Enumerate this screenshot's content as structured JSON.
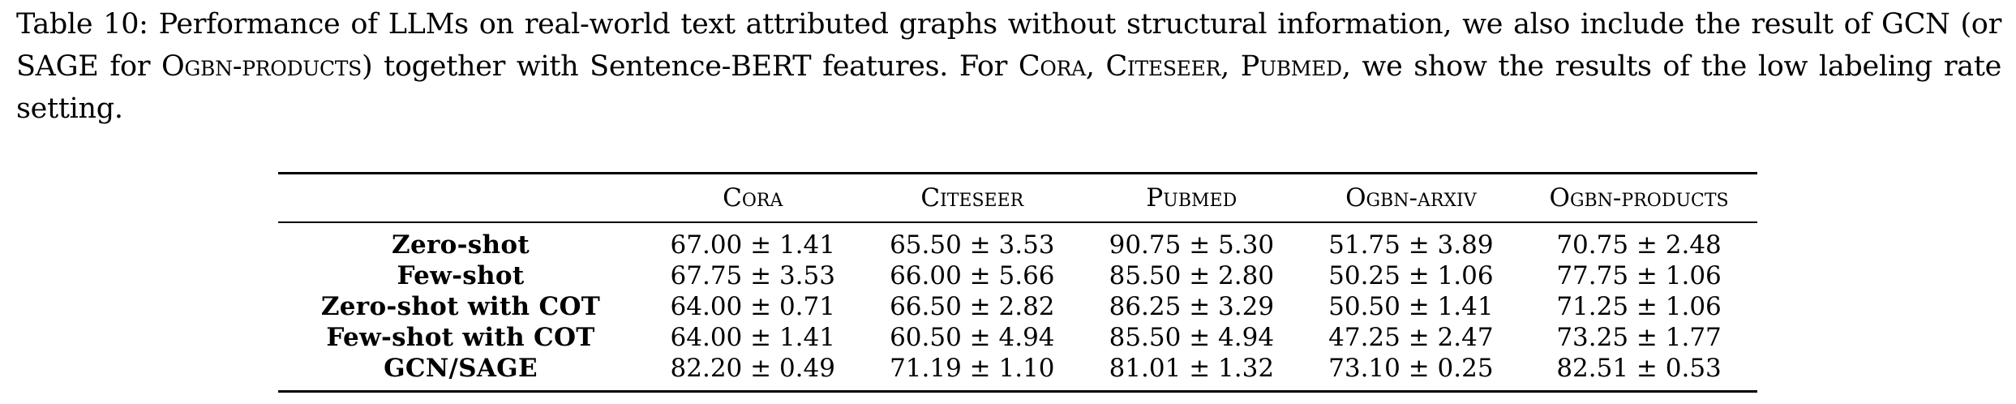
{
  "caption": {
    "label": "Table 10:",
    "part1": "Performance of LLMs on real-world text attributed graphs without structural information, we also include the result of GCN (or SAGE for ",
    "sc1": "Ogbn-products",
    "part2": ") together with Sentence-BERT features. For ",
    "sc2": "Cora",
    "sep1": ", ",
    "sc3": "Citeseer",
    "sep2": ", ",
    "sc4": "Pubmed",
    "part3": ", we show the results of the low labeling rate setting."
  },
  "table": {
    "columns": [
      "",
      "Cora",
      "Citeseer",
      "Pubmed",
      "Ogbn-arxiv",
      "Ogbn-products"
    ],
    "rows": [
      {
        "method": "Zero-shot",
        "values": [
          "67.00 ± 1.41",
          "65.50 ± 3.53",
          "90.75 ± 5.30",
          "51.75 ± 3.89",
          "70.75 ± 2.48"
        ]
      },
      {
        "method": "Few-shot",
        "values": [
          "67.75 ± 3.53",
          "66.00 ± 5.66",
          "85.50 ± 2.80",
          "50.25 ± 1.06",
          "77.75 ± 1.06"
        ]
      },
      {
        "method": "Zero-shot with COT",
        "values": [
          "64.00 ± 0.71",
          "66.50 ± 2.82",
          "86.25 ± 3.29",
          "50.50 ± 1.41",
          "71.25 ± 1.06"
        ]
      },
      {
        "method": "Few-shot with COT",
        "values": [
          "64.00 ± 1.41",
          "60.50 ± 4.94",
          "85.50 ± 4.94",
          "47.25 ± 2.47",
          "73.25 ± 1.77"
        ]
      },
      {
        "method": "GCN/SAGE",
        "values": [
          "82.20 ± 0.49",
          "71.19 ± 1.10",
          "81.01 ± 1.32",
          "73.10 ± 0.25",
          "82.51 ± 0.53"
        ]
      }
    ]
  }
}
